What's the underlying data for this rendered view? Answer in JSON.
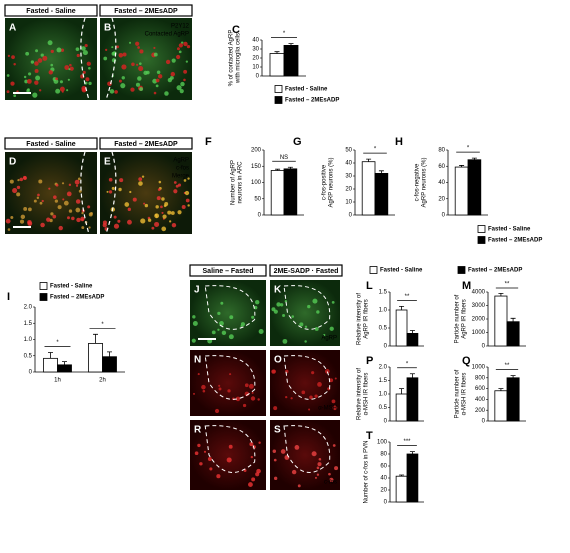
{
  "headers": [
    "Fasted - Saline",
    "Fasted – 2MEsADP",
    "Fasted - Saline",
    "Fasted – 2MEsADP",
    "Saline – Fasted",
    "2ME-SADP · Fasted"
  ],
  "images": [
    {
      "letter": "A"
    },
    {
      "letter": "B",
      "labels": [
        "P2Y12",
        "Contacted AgRP"
      ]
    },
    {
      "letter": "D"
    },
    {
      "letter": "E",
      "labels": [
        "AgRP",
        "c-fos",
        "Merge"
      ]
    },
    {
      "letter": "J"
    },
    {
      "letter": "K",
      "labels": [
        "AgRP"
      ]
    },
    {
      "letter": "N"
    },
    {
      "letter": "O",
      "labels": [
        "α-MSH"
      ]
    },
    {
      "letter": "R"
    },
    {
      "letter": "S",
      "labels": [
        "c-fos"
      ]
    }
  ],
  "chart_data": [
    {
      "type": "bar",
      "panel": "C",
      "ylabel": [
        "% of contacted AgRP",
        "with microglia cells"
      ],
      "ylim": [
        0,
        40
      ],
      "yticks": [
        0,
        10,
        20,
        30,
        40
      ],
      "significance": [
        "*"
      ],
      "legend": true,
      "series": [
        {
          "name": "Fasted - Saline",
          "color": "#ffffff",
          "values": [
            25
          ],
          "errors": [
            2
          ]
        },
        {
          "name": "Fasted – 2MEsADP",
          "color": "#000000",
          "values": [
            34
          ],
          "errors": [
            2
          ]
        }
      ]
    },
    {
      "type": "bar",
      "panel": "F",
      "ylabel": [
        "Number of AgRP",
        "neurons in ARC"
      ],
      "ylim": [
        0,
        200
      ],
      "yticks": [
        0,
        50,
        100,
        150,
        200
      ],
      "significance": [
        "NS"
      ],
      "series": [
        {
          "name": "Fasted - Saline",
          "color": "#ffffff",
          "values": [
            137
          ],
          "errors": [
            4
          ]
        },
        {
          "name": "Fasted – 2MEsADP",
          "color": "#000000",
          "values": [
            142
          ],
          "errors": [
            5
          ]
        }
      ]
    },
    {
      "type": "bar",
      "panel": "G",
      "ylabel": [
        "c-fos-positive",
        "AgRP neurons (%)"
      ],
      "ylim": [
        0,
        50
      ],
      "yticks": [
        0,
        10,
        20,
        30,
        40,
        50
      ],
      "significance": [
        "*"
      ],
      "series": [
        {
          "name": "Fasted - Saline",
          "color": "#ffffff",
          "values": [
            41
          ],
          "errors": [
            2
          ]
        },
        {
          "name": "Fasted – 2MEsADP",
          "color": "#000000",
          "values": [
            32
          ],
          "errors": [
            2
          ]
        }
      ]
    },
    {
      "type": "bar",
      "panel": "H",
      "ylabel": [
        "c-fos-negative",
        "AgRP neurons (%)"
      ],
      "ylim": [
        0,
        80
      ],
      "yticks": [
        0,
        20,
        40,
        60,
        80
      ],
      "significance": [
        "*"
      ],
      "legend": true,
      "series": [
        {
          "name": "Fasted - Saline",
          "color": "#ffffff",
          "values": [
            59
          ],
          "errors": [
            2
          ]
        },
        {
          "name": "Fasted – 2MEsADP",
          "color": "#000000",
          "values": [
            68
          ],
          "errors": [
            2
          ]
        }
      ]
    },
    {
      "type": "bar",
      "panel": "I",
      "categories": [
        "1h",
        "2h"
      ],
      "ylim": [
        0,
        2
      ],
      "yticks": [
        0,
        0.5,
        {
          "value": 1,
          "label": "1.0"
        },
        1.5,
        {
          "value": 2,
          "label": "2.0"
        }
      ],
      "significance": [
        "*",
        "*"
      ],
      "legend": true,
      "series": [
        {
          "name": "Fasted - Saline",
          "color": "#ffffff",
          "values": [
            0.42,
            0.88
          ],
          "errors": [
            0.18,
            0.28
          ]
        },
        {
          "name": "Fasted – 2MEsADP",
          "color": "#000000",
          "values": [
            0.22,
            0.47
          ],
          "errors": [
            0.1,
            0.15
          ]
        }
      ]
    },
    {
      "type": "bar",
      "panel": "L",
      "ylabel": [
        "Relative intensity of",
        "AgRP IR fibers"
      ],
      "ylim": [
        0,
        1.5
      ],
      "yticks": [
        0,
        0.5,
        {
          "value": 1,
          "label": "1.0"
        },
        1.5
      ],
      "significance": [
        "**"
      ],
      "legend": true,
      "series": [
        {
          "name": "Fasted - Saline",
          "color": "#ffffff",
          "values": [
            1.0
          ],
          "errors": [
            0.1
          ]
        },
        {
          "name": "Fasted – 2MEsADP",
          "color": "#000000",
          "values": [
            0.35
          ],
          "errors": [
            0.08
          ]
        }
      ]
    },
    {
      "type": "bar",
      "panel": "M",
      "ylabel": [
        "Particle number of",
        "AgRP IR fibers"
      ],
      "ylim": [
        0,
        4000
      ],
      "yticks": [
        0,
        1000,
        2000,
        3000,
        4000
      ],
      "significance": [
        "**"
      ],
      "series": [
        {
          "name": "Fasted - Saline",
          "color": "#ffffff",
          "values": [
            3700
          ],
          "errors": [
            200
          ]
        },
        {
          "name": "Fasted – 2MEsADP",
          "color": "#000000",
          "values": [
            1800
          ],
          "errors": [
            250
          ]
        }
      ]
    },
    {
      "type": "bar",
      "panel": "P",
      "ylabel": [
        "Relative intensity of",
        "α-MSH IR fibers"
      ],
      "ylim": [
        0,
        2
      ],
      "yticks": [
        0,
        0.5,
        {
          "value": 1,
          "label": "1.0"
        },
        1.5,
        {
          "value": 2,
          "label": "2.0"
        }
      ],
      "significance": [
        "*"
      ],
      "series": [
        {
          "name": "Fasted - Saline",
          "color": "#ffffff",
          "values": [
            1.0
          ],
          "errors": [
            0.2
          ]
        },
        {
          "name": "Fasted – 2MEsADP",
          "color": "#000000",
          "values": [
            1.6
          ],
          "errors": [
            0.15
          ]
        }
      ]
    },
    {
      "type": "bar",
      "panel": "Q",
      "ylabel": [
        "Particle number of",
        "α-MSH IR fibers"
      ],
      "ylim": [
        0,
        1000
      ],
      "yticks": [
        0,
        200,
        400,
        600,
        800,
        1000
      ],
      "significance": [
        "**"
      ],
      "series": [
        {
          "name": "Fasted - Saline",
          "color": "#ffffff",
          "values": [
            560
          ],
          "errors": [
            40
          ]
        },
        {
          "name": "Fasted – 2MEsADP",
          "color": "#000000",
          "values": [
            800
          ],
          "errors": [
            40
          ]
        }
      ]
    },
    {
      "type": "bar",
      "panel": "T",
      "ylabel": [
        "Number of c-fos in PVN"
      ],
      "ylim": [
        0,
        100
      ],
      "yticks": [
        0,
        20,
        40,
        60,
        80,
        100
      ],
      "significance": [
        "***"
      ],
      "series": [
        {
          "name": "Fasted - Saline",
          "color": "#ffffff",
          "values": [
            43
          ],
          "errors": [
            2
          ]
        },
        {
          "name": "Fasted – 2MEsADP",
          "color": "#000000",
          "values": [
            80
          ],
          "errors": [
            4
          ]
        }
      ]
    }
  ]
}
